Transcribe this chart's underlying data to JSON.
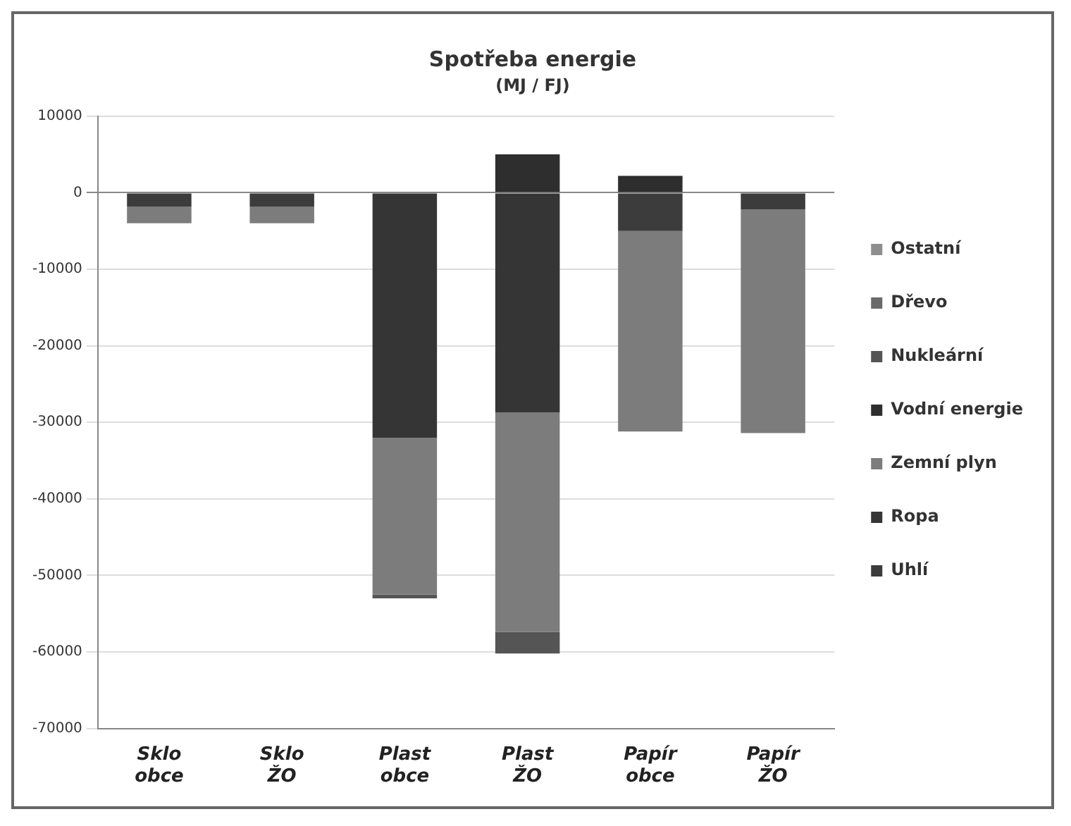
{
  "chart_data": {
    "type": "bar",
    "title": "Spotřeba energie",
    "subtitle": "(MJ / FJ)",
    "stacked": true,
    "categories": [
      "Sklo obce",
      "Sklo ŽO",
      "Plast obce",
      "Plast ŽO",
      "Papír obce",
      "Papír ŽO"
    ],
    "series": [
      {
        "name": "Uhlí",
        "color": "#3c3c3c",
        "values": [
          -1800,
          -1800,
          null,
          null,
          -5000,
          -2200
        ]
      },
      {
        "name": "Ropa",
        "color": "#353535",
        "values": [
          null,
          null,
          -32000,
          -28700,
          null,
          null
        ]
      },
      {
        "name": "Zemní plyn",
        "color": "#7c7c7c",
        "values": [
          -2200,
          -2200,
          -20500,
          -28700,
          -26200,
          -29200
        ]
      },
      {
        "name": "Vodní energie",
        "color": "#2e2e2e",
        "values": [
          null,
          null,
          null,
          5000,
          2200,
          null
        ]
      },
      {
        "name": "Nukleární",
        "color": "#555555",
        "values": [
          null,
          null,
          -500,
          -2800,
          null,
          null
        ]
      },
      {
        "name": "Dřevo",
        "color": "#6a6a6a",
        "values": [
          null,
          null,
          null,
          null,
          null,
          null
        ]
      },
      {
        "name": "Ostatní",
        "color": "#8e8e8e",
        "values": [
          null,
          null,
          null,
          null,
          null,
          null
        ]
      }
    ],
    "ylim": [
      -70000,
      10000
    ],
    "yticks": [
      -70000,
      -60000,
      -50000,
      -40000,
      -30000,
      -20000,
      -10000,
      0,
      10000
    ],
    "grid": "y",
    "legend": "right"
  }
}
